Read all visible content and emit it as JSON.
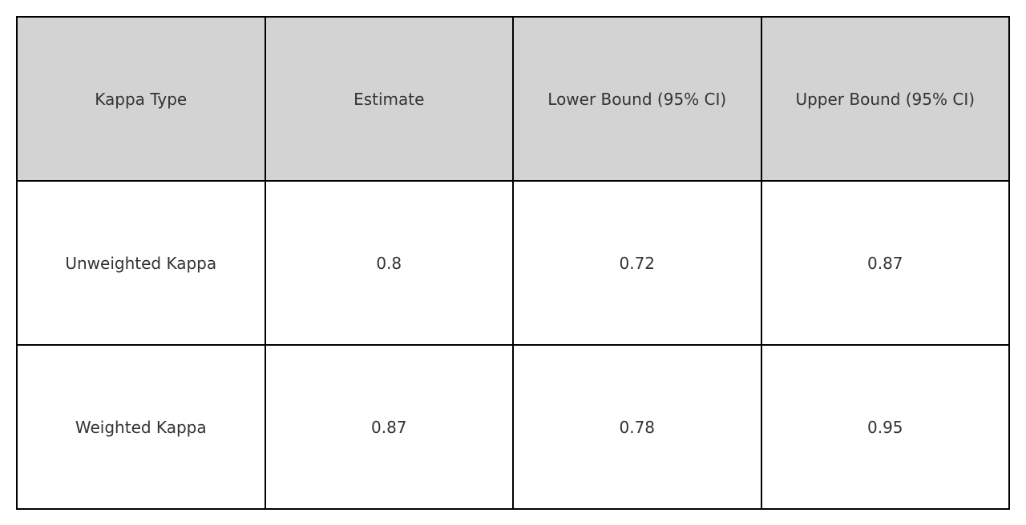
{
  "chart_data": {
    "type": "table",
    "columns": [
      "Kappa Type",
      "Estimate",
      "Lower Bound (95% CI)",
      "Upper Bound (95% CI)"
    ],
    "rows": [
      [
        "Unweighted Kappa",
        "0.8",
        "0.72",
        "0.87"
      ],
      [
        "Weighted Kappa",
        "0.87",
        "0.78",
        "0.95"
      ]
    ]
  },
  "colors": {
    "header_background": "#d3d3d3",
    "cell_background": "#ffffff",
    "border": "#000000",
    "text": "#333333"
  }
}
